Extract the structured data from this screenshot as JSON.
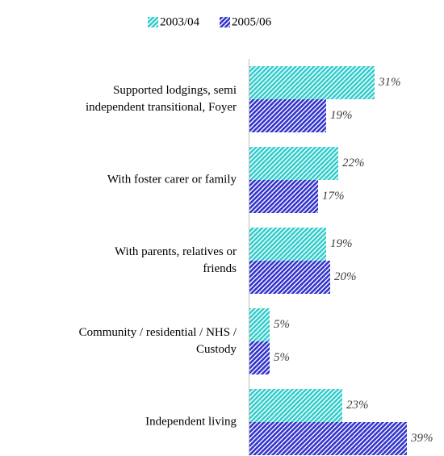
{
  "chart_data": {
    "type": "bar",
    "orientation": "horizontal",
    "categories": [
      [
        "Supported lodgings, semi",
        "independent transitional, Foyer"
      ],
      [
        "With foster carer or family"
      ],
      [
        "With parents, relatives or",
        "friends"
      ],
      [
        "Community / residential / NHS /",
        "Custody"
      ],
      [
        "Independent living"
      ]
    ],
    "series": [
      {
        "name": "2003/04",
        "color": "#33cccc",
        "values": [
          31,
          22,
          19,
          5,
          23
        ],
        "value_labels": [
          "31%",
          "22%",
          "19%",
          "5%",
          "23%"
        ]
      },
      {
        "name": "2005/06",
        "color": "#3333cc",
        "values": [
          19,
          17,
          20,
          5,
          39
        ],
        "value_labels": [
          "19%",
          "17%",
          "20%",
          "5%",
          "39%"
        ]
      }
    ],
    "legend": "top",
    "pattern": "hatched"
  }
}
